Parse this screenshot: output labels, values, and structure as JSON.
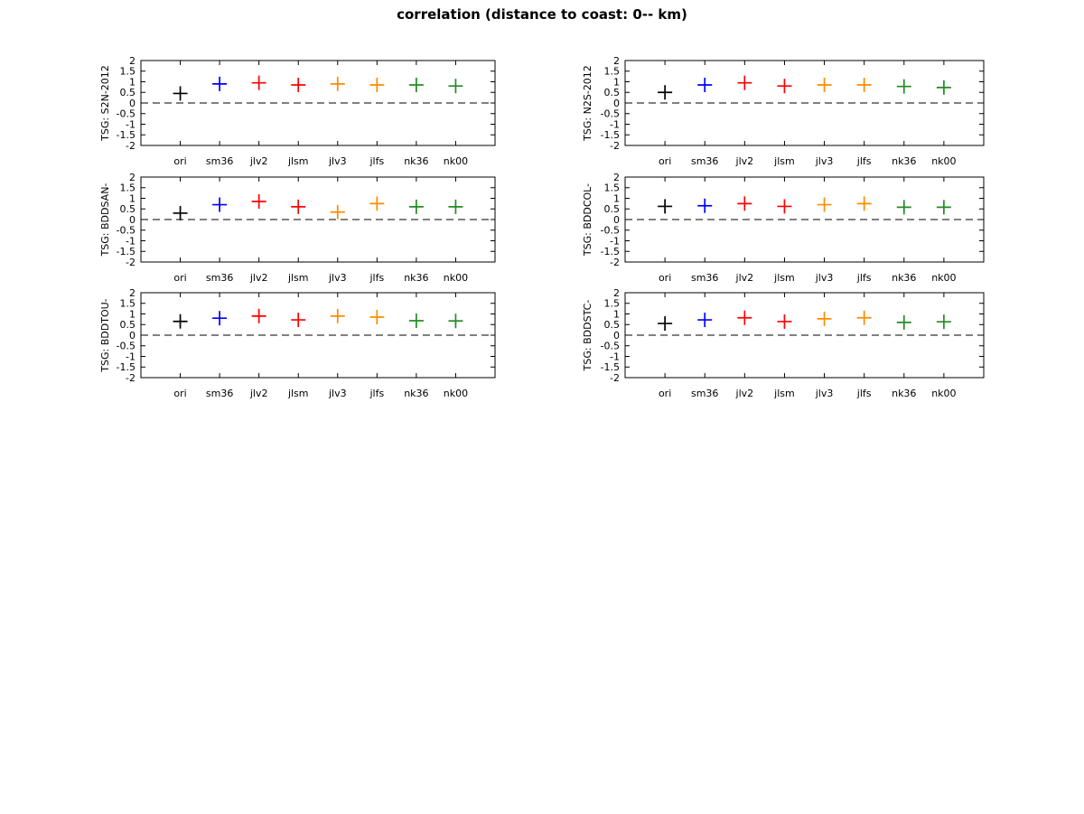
{
  "figure": {
    "background": "#ffffff"
  },
  "chart_data": {
    "type": "scatter",
    "title": "correlation (distance to coast: 0-- km)",
    "marker": "plus",
    "categories": [
      "ori",
      "sm36",
      "jlv2",
      "jlsm",
      "jlv3",
      "jlfs",
      "nk36",
      "nk00"
    ],
    "category_colors": [
      "#000000",
      "#0000ff",
      "#ff0000",
      "#ff0000",
      "#ff8c00",
      "#ff8c00",
      "#228b22",
      "#228b22"
    ],
    "ylim": [
      -2,
      2
    ],
    "yticks": [
      2,
      1.5,
      1,
      0.5,
      0,
      -0.5,
      -1,
      -1.5,
      -2
    ],
    "zero_line_style": "dashed",
    "grid": false,
    "legend": "none",
    "layout": {
      "rows": 3,
      "cols": 2
    },
    "subplots": [
      {
        "ylabel": "TSG: S2N-2012",
        "row": 0,
        "col": 0,
        "values": [
          0.45,
          0.9,
          0.95,
          0.85,
          0.9,
          0.85,
          0.85,
          0.8
        ]
      },
      {
        "ylabel": "TSG: N2S-2012",
        "row": 0,
        "col": 1,
        "values": [
          0.5,
          0.85,
          0.95,
          0.8,
          0.85,
          0.85,
          0.78,
          0.73
        ]
      },
      {
        "ylabel": "TSG: BDDSAN-",
        "row": 1,
        "col": 0,
        "values": [
          0.3,
          0.7,
          0.85,
          0.6,
          0.35,
          0.75,
          0.6,
          0.6
        ]
      },
      {
        "ylabel": "TSG: BDDCOL-",
        "row": 1,
        "col": 1,
        "values": [
          0.62,
          0.65,
          0.75,
          0.62,
          0.7,
          0.75,
          0.58,
          0.58
        ]
      },
      {
        "ylabel": "TSG: BDDTOU-",
        "row": 2,
        "col": 0,
        "values": [
          0.65,
          0.8,
          0.9,
          0.72,
          0.9,
          0.85,
          0.68,
          0.67
        ]
      },
      {
        "ylabel": "TSG: BDDSTC-",
        "row": 2,
        "col": 1,
        "values": [
          0.55,
          0.72,
          0.82,
          0.64,
          0.77,
          0.82,
          0.6,
          0.63
        ]
      }
    ]
  }
}
